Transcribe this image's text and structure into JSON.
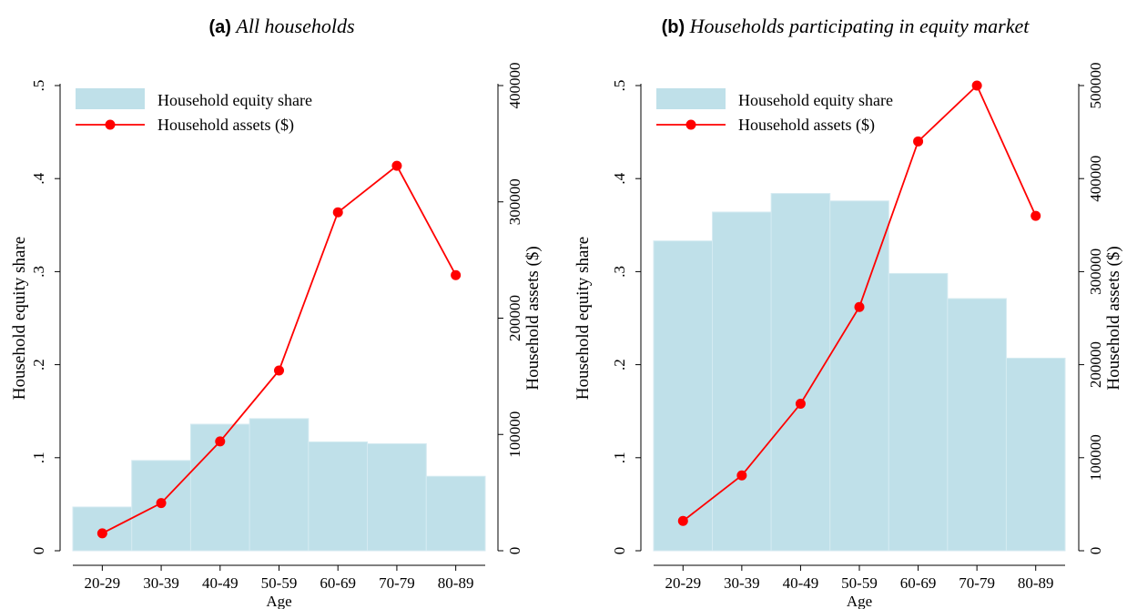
{
  "chart_data": [
    {
      "type": "bar",
      "panel_label": "(a)",
      "title": "All households",
      "xlabel": "Age",
      "ylabel": "Household equity share",
      "y2label": "Household assets ($)",
      "categories": [
        "20-29",
        "30-39",
        "40-49",
        "50-59",
        "60-69",
        "70-79",
        "80-89"
      ],
      "ylim": [
        0,
        0.5
      ],
      "yticks": [
        0,
        0.1,
        0.2,
        0.3,
        0.4,
        0.5
      ],
      "ytick_labels": [
        "0",
        ".1",
        ".2",
        ".3",
        ".4",
        ".5"
      ],
      "y2lim": [
        0,
        400000
      ],
      "y2ticks": [
        0,
        100000,
        200000,
        300000,
        400000
      ],
      "y2tick_labels": [
        "0",
        "100000",
        "200000",
        "300000",
        "400000"
      ],
      "legend_position": "top-left",
      "grid": false,
      "series": [
        {
          "name": "Household equity share",
          "type": "bar",
          "axis": "left",
          "color": "#bfe0e9",
          "values": [
            0.047,
            0.097,
            0.136,
            0.142,
            0.117,
            0.115,
            0.08
          ]
        },
        {
          "name": "Household assets ($)",
          "type": "line",
          "axis": "right",
          "color": "#ff0000",
          "values": [
            15000,
            41000,
            94000,
            155000,
            291000,
            331000,
            237000
          ]
        }
      ]
    },
    {
      "type": "bar",
      "panel_label": "(b)",
      "title": "Households participating in equity market",
      "xlabel": "Age",
      "ylabel": "Household equity share",
      "y2label": "Household assets ($)",
      "categories": [
        "20-29",
        "30-39",
        "40-49",
        "50-59",
        "60-69",
        "70-79",
        "80-89"
      ],
      "ylim": [
        0,
        0.5
      ],
      "yticks": [
        0,
        0.1,
        0.2,
        0.3,
        0.4,
        0.5
      ],
      "ytick_labels": [
        "0",
        ".1",
        ".2",
        ".3",
        ".4",
        ".5"
      ],
      "y2lim": [
        0,
        500000
      ],
      "y2ticks": [
        0,
        100000,
        200000,
        300000,
        400000,
        500000
      ],
      "y2tick_labels": [
        "0",
        "100000",
        "200000",
        "300000",
        "400000",
        "500000"
      ],
      "legend_position": "top-left",
      "grid": false,
      "series": [
        {
          "name": "Household equity share",
          "type": "bar",
          "axis": "left",
          "color": "#bfe0e9",
          "values": [
            0.333,
            0.364,
            0.384,
            0.376,
            0.298,
            0.271,
            0.207
          ]
        },
        {
          "name": "Household assets ($)",
          "type": "line",
          "axis": "right",
          "color": "#ff0000",
          "values": [
            32000,
            81000,
            158000,
            262000,
            440000,
            500000,
            360000
          ]
        }
      ]
    }
  ]
}
